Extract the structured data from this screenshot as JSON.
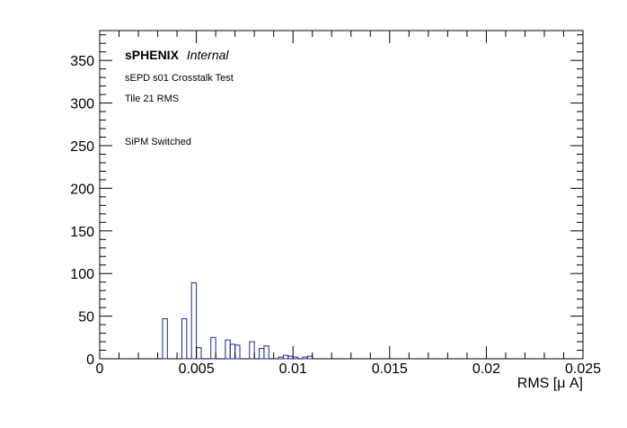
{
  "chart_data": {
    "type": "bar",
    "histogram": true,
    "title": "",
    "xlabel": "RMS [μ A]",
    "ylabel": "",
    "xlim": [
      0,
      0.025
    ],
    "ylim": [
      0,
      385
    ],
    "grid": false,
    "x_ticks": [
      0,
      0.005,
      0.01,
      0.015,
      0.02,
      0.025
    ],
    "x_tick_labels": [
      "0",
      "0.005",
      "0.01",
      "0.015",
      "0.02",
      "0.025"
    ],
    "y_ticks": [
      0,
      50,
      100,
      150,
      200,
      250,
      300,
      350
    ],
    "y_tick_labels": [
      "0",
      "50",
      "100",
      "150",
      "200",
      "250",
      "300",
      "350"
    ],
    "bin_width": 0.00025,
    "bins": [
      {
        "x": 0.00325,
        "y": 47
      },
      {
        "x": 0.0035,
        "y": 0
      },
      {
        "x": 0.00375,
        "y": 0
      },
      {
        "x": 0.004,
        "y": 0
      },
      {
        "x": 0.00425,
        "y": 47
      },
      {
        "x": 0.0045,
        "y": 0
      },
      {
        "x": 0.00475,
        "y": 89
      },
      {
        "x": 0.005,
        "y": 13
      },
      {
        "x": 0.00525,
        "y": 0
      },
      {
        "x": 0.0055,
        "y": 0
      },
      {
        "x": 0.00575,
        "y": 25
      },
      {
        "x": 0.006,
        "y": 0
      },
      {
        "x": 0.00625,
        "y": 0
      },
      {
        "x": 0.0065,
        "y": 22
      },
      {
        "x": 0.00675,
        "y": 17
      },
      {
        "x": 0.007,
        "y": 16
      },
      {
        "x": 0.00725,
        "y": 0
      },
      {
        "x": 0.0075,
        "y": 0
      },
      {
        "x": 0.00775,
        "y": 20
      },
      {
        "x": 0.008,
        "y": 0
      },
      {
        "x": 0.00825,
        "y": 12
      },
      {
        "x": 0.0085,
        "y": 15
      },
      {
        "x": 0.00875,
        "y": 0
      },
      {
        "x": 0.009,
        "y": 0
      },
      {
        "x": 0.00925,
        "y": 2
      },
      {
        "x": 0.0095,
        "y": 4
      },
      {
        "x": 0.00975,
        "y": 3
      },
      {
        "x": 0.01,
        "y": 2
      },
      {
        "x": 0.01025,
        "y": 0
      },
      {
        "x": 0.0105,
        "y": 2
      },
      {
        "x": 0.01075,
        "y": 3
      }
    ],
    "line_color": "#1a2a8c",
    "annotations": {
      "brand": "sPHENIX",
      "status": "Internal",
      "line1": "sEPD s01 Crosstalk Test",
      "line2": "Tile 21 RMS",
      "line3": "SiPM Switched"
    }
  }
}
